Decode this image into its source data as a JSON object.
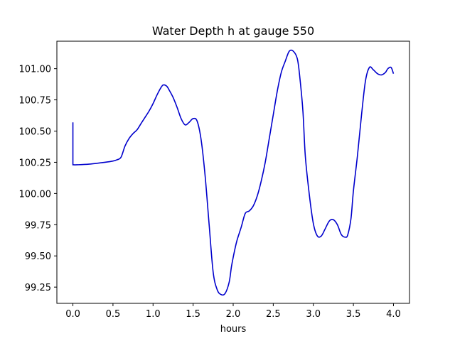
{
  "chart_data": {
    "type": "line",
    "title": "Water Depth h at gauge 550",
    "xlabel": "hours",
    "ylabel": "",
    "xlim": [
      -0.2,
      4.2
    ],
    "ylim": [
      99.12,
      101.22
    ],
    "xticks": [
      0.0,
      0.5,
      1.0,
      1.5,
      2.0,
      2.5,
      3.0,
      3.5,
      4.0
    ],
    "xtick_labels": [
      "0.0",
      "0.5",
      "1.0",
      "1.5",
      "2.0",
      "2.5",
      "3.0",
      "3.5",
      "4.0"
    ],
    "yticks": [
      99.25,
      99.5,
      99.75,
      100.0,
      100.25,
      100.5,
      100.75,
      101.0
    ],
    "ytick_labels": [
      "99.25",
      "99.50",
      "99.75",
      "100.00",
      "100.25",
      "100.50",
      "100.75",
      "101.00"
    ],
    "grid": false,
    "color": "#0000cc",
    "series": [
      {
        "x": [
          0.0,
          0.0,
          0.05,
          0.2,
          0.4,
          0.5,
          0.55,
          0.6,
          0.65,
          0.7,
          0.75,
          0.8,
          0.85,
          0.9,
          0.95,
          1.0,
          1.05,
          1.1,
          1.13,
          1.17,
          1.2,
          1.25,
          1.3,
          1.35,
          1.4,
          1.45,
          1.5,
          1.55,
          1.6,
          1.65,
          1.7,
          1.75,
          1.8,
          1.85,
          1.9,
          1.95,
          1.98,
          2.02,
          2.05,
          2.1,
          2.15,
          2.2,
          2.25,
          2.3,
          2.35,
          2.4,
          2.45,
          2.5,
          2.55,
          2.6,
          2.65,
          2.7,
          2.75,
          2.8,
          2.83,
          2.87,
          2.9,
          2.95,
          3.0,
          3.05,
          3.1,
          3.15,
          3.2,
          3.25,
          3.3,
          3.35,
          3.4,
          3.43,
          3.47,
          3.5,
          3.55,
          3.6,
          3.65,
          3.7,
          3.75,
          3.8,
          3.85,
          3.9,
          3.93,
          3.97,
          4.0
        ],
        "y": [
          100.57,
          100.23,
          100.23,
          100.235,
          100.25,
          100.26,
          100.27,
          100.29,
          100.38,
          100.44,
          100.48,
          100.51,
          100.56,
          100.61,
          100.66,
          100.72,
          100.79,
          100.85,
          100.87,
          100.86,
          100.83,
          100.77,
          100.69,
          100.6,
          100.55,
          100.57,
          100.6,
          100.58,
          100.43,
          100.14,
          99.75,
          99.37,
          99.23,
          99.19,
          99.2,
          99.29,
          99.42,
          99.55,
          99.63,
          99.73,
          99.84,
          99.86,
          99.9,
          99.98,
          100.1,
          100.25,
          100.44,
          100.63,
          100.82,
          100.97,
          101.06,
          101.14,
          101.14,
          101.08,
          100.94,
          100.66,
          100.3,
          99.99,
          99.76,
          99.66,
          99.66,
          99.72,
          99.78,
          99.79,
          99.75,
          99.67,
          99.65,
          99.67,
          99.8,
          100.02,
          100.3,
          100.62,
          100.9,
          101.01,
          100.99,
          100.96,
          100.95,
          100.97,
          101.0,
          101.01,
          100.96
        ]
      }
    ]
  }
}
